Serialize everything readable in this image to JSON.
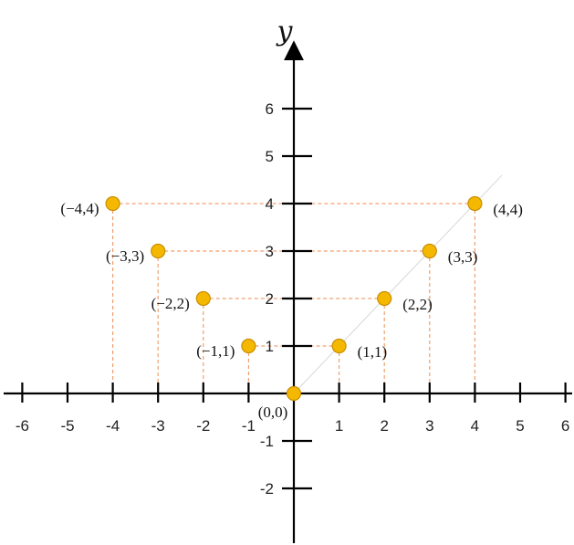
{
  "chart_data": {
    "type": "scatter",
    "x_axis": {
      "range": [
        -6,
        6
      ],
      "tick_labels": [
        "-6",
        "-5",
        "-4",
        "-3",
        "-2",
        "-1",
        "1",
        "2",
        "3",
        "4",
        "5",
        "6"
      ]
    },
    "y_axis": {
      "label": "y",
      "range": [
        -2,
        6
      ],
      "tick_labels": [
        "-2",
        "-1",
        "1",
        "2",
        "3",
        "4",
        "5",
        "6"
      ]
    },
    "points": [
      {
        "x": 0,
        "y": 0,
        "label": "(0,0)"
      },
      {
        "x": 1,
        "y": 1,
        "label": "(1,1)"
      },
      {
        "x": 2,
        "y": 2,
        "label": "(2,2)"
      },
      {
        "x": 3,
        "y": 3,
        "label": "(3,3)"
      },
      {
        "x": 4,
        "y": 4,
        "label": "(4,4)"
      },
      {
        "x": -1,
        "y": 1,
        "label": "(−1,1)"
      },
      {
        "x": -2,
        "y": 2,
        "label": "(−2,2)"
      },
      {
        "x": -3,
        "y": 3,
        "label": "(−3,3)"
      },
      {
        "x": -4,
        "y": 4,
        "label": "(−4,4)"
      }
    ],
    "grid": false,
    "guide_lines": "dashed",
    "colors": {
      "point_fill": "#f5b800",
      "point_stroke": "#c78f00",
      "guide_line": "#f0a070",
      "axis": "#000000"
    }
  }
}
